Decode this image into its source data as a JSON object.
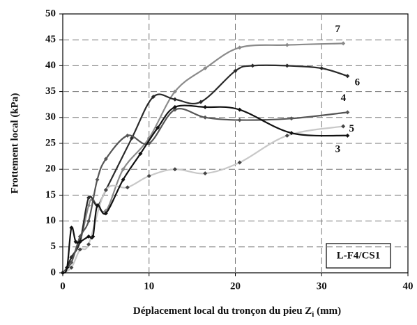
{
  "chart_data": {
    "type": "line",
    "xlabel": "Déplacement local du tronçon du pieu Z",
    "xlabel_subscript": "i",
    "ylabel": "Frottement local (kPa)",
    "annotation": "L-F4/CS1",
    "xlim": [
      0,
      40
    ],
    "xticks": [
      0,
      10,
      20,
      30,
      40
    ],
    "ylim": [
      0,
      50
    ],
    "yticks": [
      0,
      5,
      10,
      15,
      20,
      25,
      30,
      35,
      40,
      45,
      50
    ],
    "grid": true,
    "series": [
      {
        "name": "7",
        "color": "#8a8a8a",
        "x": [
          0,
          0.5,
          1,
          2,
          3,
          3.5,
          5,
          7,
          10,
          13,
          16.5,
          20.5,
          26,
          32.5
        ],
        "values": [
          0,
          1,
          3,
          6,
          13,
          14,
          12,
          20,
          26,
          35,
          39.5,
          43.5,
          44,
          44.3
        ]
      },
      {
        "name": "6",
        "color": "#2a2a2a",
        "x": [
          0,
          0.5,
          1,
          2,
          3,
          4,
          5,
          8,
          10.5,
          13,
          16,
          20,
          22,
          26,
          30,
          33
        ],
        "values": [
          0,
          1,
          3,
          6,
          14.5,
          13,
          16,
          26,
          34,
          33.5,
          33,
          39,
          40,
          40,
          39.5,
          38
        ]
      },
      {
        "name": "4",
        "color": "#555555",
        "x": [
          0,
          1,
          2,
          3,
          4,
          5,
          7.5,
          10,
          13,
          16.5,
          20.5,
          26.5,
          33
        ],
        "values": [
          0,
          2,
          7,
          10,
          18,
          22,
          26.5,
          25,
          31.5,
          30,
          29.5,
          29.8,
          31
        ]
      },
      {
        "name": "5",
        "color": "#c8c8c8",
        "x": [
          0,
          1,
          2,
          3,
          5,
          7.5,
          10,
          13,
          16.5,
          20.5,
          26,
          32.5
        ],
        "values": [
          0,
          1,
          4.5,
          5.5,
          16,
          16.5,
          18.7,
          20,
          19.2,
          21.3,
          26.5,
          28.3
        ]
      },
      {
        "name": "3",
        "color": "#111111",
        "x": [
          0,
          0.5,
          1,
          1.5,
          2,
          3,
          3.5,
          4,
          5,
          7,
          9,
          11,
          13,
          16.5,
          20.5,
          26.5,
          33
        ],
        "values": [
          0,
          1,
          8.7,
          6,
          6,
          7,
          7,
          13,
          11.5,
          18,
          23,
          28,
          32,
          32,
          31.5,
          27,
          26.5
        ]
      }
    ]
  }
}
